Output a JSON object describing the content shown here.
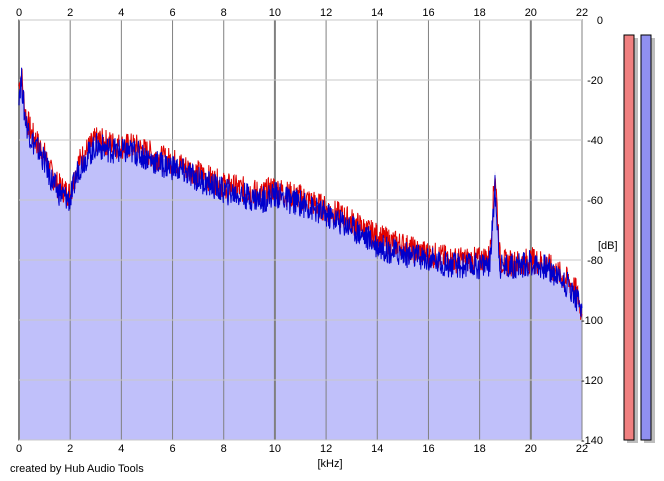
{
  "footer_text": "created by Hub Audio Tools",
  "chart_data": {
    "type": "area",
    "xlabel": "[kHz]",
    "ylabel": "[dB]",
    "xlim": [
      0,
      22
    ],
    "ylim": [
      -140,
      0
    ],
    "x_ticks": [
      0,
      2,
      4,
      6,
      8,
      10,
      12,
      14,
      16,
      18,
      20,
      22
    ],
    "y_ticks": [
      0,
      -20,
      -40,
      -60,
      -80,
      -100,
      -120,
      -140
    ],
    "grid": true,
    "colors": {
      "fill": "#c0c0fa",
      "left": "#e00000",
      "right": "#0000cc",
      "grid": "#c8c8c8"
    },
    "series": [
      {
        "channel": "left",
        "x": [
          0,
          0.1,
          0.2,
          0.3,
          0.5,
          0.8,
          1.0,
          1.2,
          1.5,
          1.8,
          2.0,
          2.3,
          2.6,
          3.0,
          3.5,
          4.0,
          4.5,
          5.0,
          5.5,
          6.0,
          6.5,
          7.0,
          7.5,
          8.0,
          8.5,
          9.0,
          9.5,
          10.0,
          10.5,
          11.0,
          11.5,
          12.0,
          12.5,
          13.0,
          13.5,
          14.0,
          14.5,
          15.0,
          15.5,
          16.0,
          16.5,
          17.0,
          17.5,
          18.0,
          18.4,
          18.6,
          18.8,
          19.0,
          19.5,
          20.0,
          20.5,
          21.0,
          21.3,
          21.6,
          21.8,
          22.0
        ],
        "y": [
          -22,
          -18,
          -28,
          -33,
          -38,
          -42,
          -45,
          -50,
          -55,
          -57,
          -58,
          -48,
          -44,
          -40,
          -41,
          -42,
          -42,
          -44,
          -46,
          -47,
          -49,
          -51,
          -53,
          -55,
          -56,
          -57,
          -58,
          -56,
          -58,
          -59,
          -61,
          -63,
          -65,
          -67,
          -70,
          -72,
          -74,
          -75,
          -77,
          -78,
          -79,
          -80,
          -80,
          -80,
          -79,
          -50,
          -80,
          -81,
          -81,
          -80,
          -81,
          -84,
          -86,
          -88,
          -91,
          -98
        ]
      },
      {
        "channel": "right",
        "x": [
          0,
          0.1,
          0.2,
          0.3,
          0.5,
          0.8,
          1.0,
          1.2,
          1.5,
          1.8,
          2.0,
          2.3,
          2.6,
          3.0,
          3.5,
          4.0,
          4.5,
          5.0,
          5.5,
          6.0,
          6.5,
          7.0,
          7.5,
          8.0,
          8.5,
          9.0,
          9.5,
          10.0,
          10.5,
          11.0,
          11.5,
          12.0,
          12.5,
          13.0,
          13.5,
          14.0,
          14.5,
          15.0,
          15.5,
          16.0,
          16.5,
          17.0,
          17.5,
          18.0,
          18.4,
          18.6,
          18.8,
          19.0,
          19.5,
          20.0,
          20.5,
          21.0,
          21.3,
          21.6,
          21.8,
          22.0
        ],
        "y": [
          -24,
          -20,
          -30,
          -35,
          -40,
          -44,
          -47,
          -52,
          -57,
          -59,
          -60,
          -50,
          -46,
          -42,
          -43,
          -44,
          -44,
          -46,
          -48,
          -49,
          -51,
          -53,
          -55,
          -57,
          -58,
          -59,
          -60,
          -58,
          -60,
          -61,
          -63,
          -65,
          -67,
          -69,
          -72,
          -75,
          -77,
          -78,
          -79,
          -80,
          -81,
          -82,
          -82,
          -82,
          -81,
          -56,
          -82,
          -82,
          -82,
          -81,
          -82,
          -85,
          -87,
          -90,
          -93,
          -96
        ]
      }
    ],
    "level_meters": [
      {
        "channel": "left",
        "value_db": -5,
        "color": "#f08080"
      },
      {
        "channel": "right",
        "value_db": -5,
        "color": "#9090f0"
      }
    ]
  }
}
